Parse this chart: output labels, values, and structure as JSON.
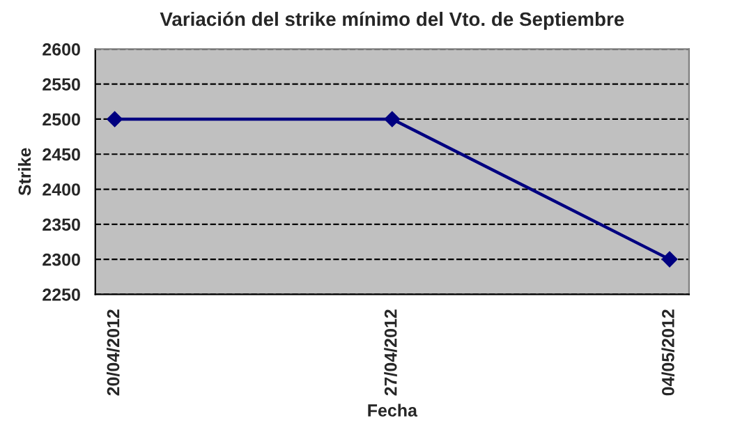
{
  "chart_data": {
    "type": "line",
    "title": "Variación del strike mínimo del Vto. de Septiembre",
    "xlabel": "Fecha",
    "ylabel": "Strike",
    "categories": [
      "20/04/2012",
      "27/04/2012",
      "04/05/2012"
    ],
    "series": [
      {
        "color": "#000080",
        "values": [
          2500,
          2500,
          2300
        ]
      }
    ],
    "ylim": [
      2250,
      2600
    ],
    "yticks": [
      2250,
      2300,
      2350,
      2400,
      2450,
      2500,
      2550,
      2600
    ],
    "grid": "y",
    "marker": "diamond",
    "line_style": "solid",
    "legend": false
  }
}
